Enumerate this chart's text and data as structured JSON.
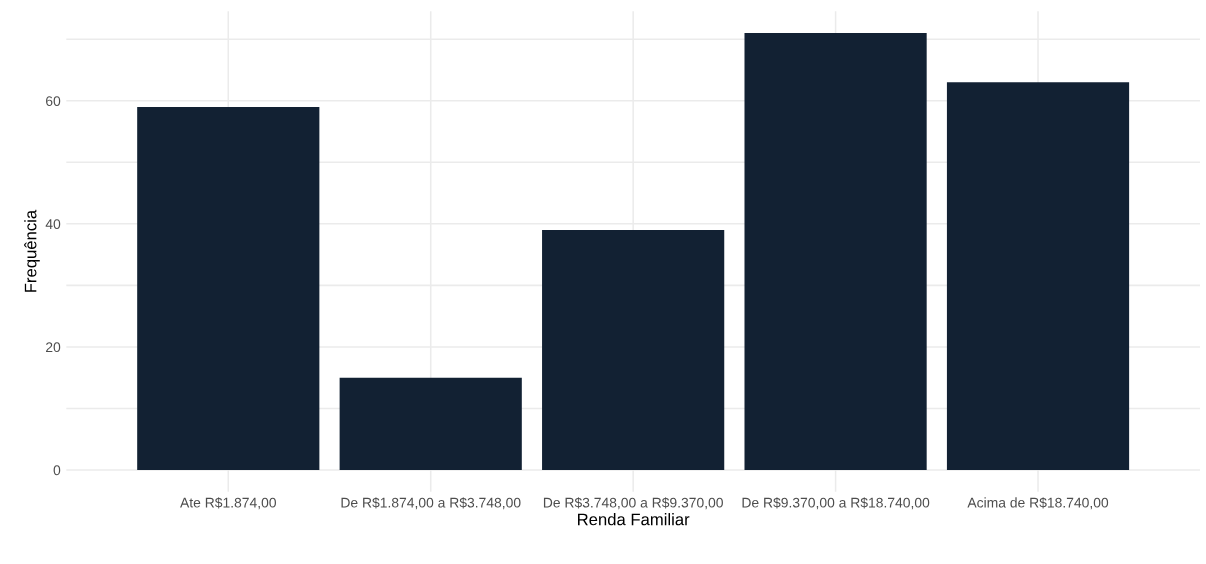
{
  "chart_data": {
    "type": "bar",
    "xlabel": "Renda Familiar",
    "ylabel": "Frequência",
    "categories": [
      "Ate R$1.874,00",
      "De R$1.874,00 a R$3.748,00",
      "De R$3.748,00 a R$9.370,00",
      "De R$9.370,00 a R$18.740,00",
      "Acima de R$18.740,00"
    ],
    "values": [
      59,
      15,
      39,
      71,
      63
    ],
    "color": "#122133",
    "ylim": [
      -3.55,
      74.55
    ],
    "yticks": [
      0,
      {
        "value": 10,
        "label": null
      },
      20,
      {
        "value": 30,
        "label": null
      },
      40,
      {
        "value": 50,
        "label": null
      },
      60,
      {
        "value": 70,
        "label": null
      }
    ],
    "grid": true
  }
}
